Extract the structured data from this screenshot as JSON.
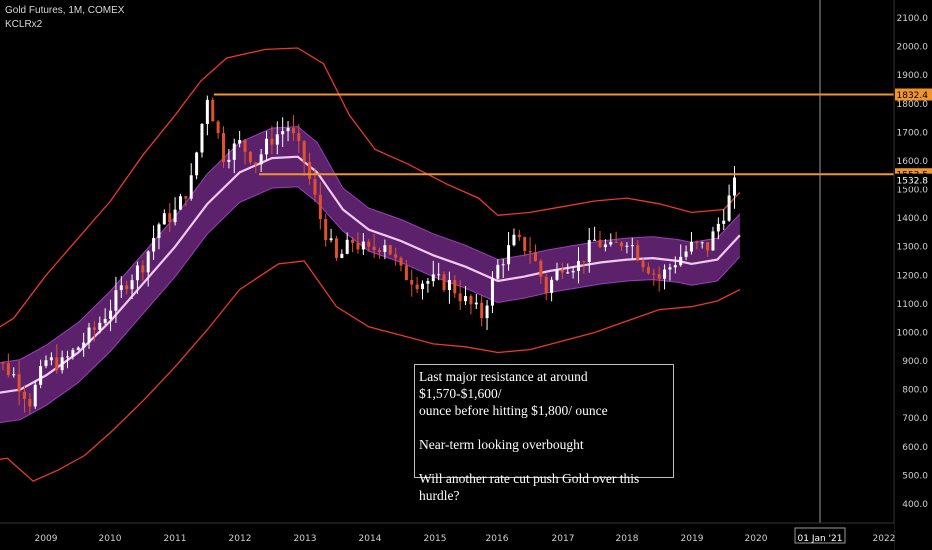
{
  "header": {
    "title": "Gold Futures, 1M, COMEX",
    "indicator": "KCLRx2"
  },
  "annotation": {
    "line1": "Last major resistance at around $1,570-$1,600/",
    "line2": "ounce before hitting $1,800/ ounce",
    "line3": "Near-term looking overbought",
    "line4": "Will another rate cut push Gold over this hurdle?"
  },
  "colors": {
    "background": "#000000",
    "up_candle": "#ffffff",
    "down_candle": "#e0522d",
    "channel_fill": "#7a2d8f",
    "midline": "#f3c8f0",
    "outer_band": "#e8392b",
    "resistance": "#f0942e",
    "price_tag": "#f0942e"
  },
  "chart_data": {
    "type": "candlestick",
    "title": "Gold Futures, 1M, COMEX",
    "y_axis": {
      "ticks": [
        "400.0",
        "500.0",
        "600.0",
        "700.0",
        "800.0",
        "900.0",
        "1000.0",
        "1100.0",
        "1200.0",
        "1300.0",
        "1400.0",
        "1500.0",
        "1600.0",
        "1700.0",
        "1800.0",
        "1900.0",
        "2000.0",
        "2100.0"
      ],
      "range": [
        360,
        2140
      ],
      "side": "right"
    },
    "x_axis": {
      "labels": [
        "2009",
        "2010",
        "2011",
        "2012",
        "2013",
        "2014",
        "2015",
        "2016",
        "2017",
        "2018",
        "2019",
        "2020",
        "2022"
      ],
      "cursor_label": "01 Jan '21"
    },
    "price_tags": [
      {
        "label": "1832.4",
        "value": 1832.4
      },
      {
        "label": "1553.5",
        "value": 1553.5
      },
      {
        "label": "1532.8",
        "value": 1532.8
      }
    ],
    "resistance_lines": [
      {
        "value": 1832.4,
        "from": "2011.6"
      },
      {
        "value": 1553.5,
        "from": "2012.3"
      }
    ],
    "candles_close": [
      [
        2008.0,
        880
      ],
      [
        2008.25,
        900
      ],
      [
        2008.5,
        850
      ],
      [
        2008.75,
        760
      ],
      [
        2009.0,
        900
      ],
      [
        2009.25,
        890
      ],
      [
        2009.5,
        950
      ],
      [
        2009.75,
        1010
      ],
      [
        2010.0,
        1090
      ],
      [
        2010.25,
        1180
      ],
      [
        2010.5,
        1240
      ],
      [
        2010.75,
        1380
      ],
      [
        2011.0,
        1420
      ],
      [
        2011.25,
        1530
      ],
      [
        2011.5,
        1830
      ],
      [
        2011.75,
        1620
      ],
      [
        2012.0,
        1660
      ],
      [
        2012.25,
        1600
      ],
      [
        2012.5,
        1680
      ],
      [
        2012.75,
        1720
      ],
      [
        2013.0,
        1600
      ],
      [
        2013.25,
        1400
      ],
      [
        2013.5,
        1250
      ],
      [
        2013.75,
        1320
      ],
      [
        2014.0,
        1280
      ],
      [
        2014.25,
        1320
      ],
      [
        2014.5,
        1210
      ],
      [
        2014.75,
        1180
      ],
      [
        2015.0,
        1180
      ],
      [
        2015.25,
        1170
      ],
      [
        2015.5,
        1110
      ],
      [
        2015.75,
        1060
      ],
      [
        2016.0,
        1230
      ],
      [
        2016.25,
        1320
      ],
      [
        2016.5,
        1290
      ],
      [
        2016.75,
        1150
      ],
      [
        2017.0,
        1240
      ],
      [
        2017.25,
        1240
      ],
      [
        2017.5,
        1320
      ],
      [
        2017.75,
        1290
      ],
      [
        2018.0,
        1330
      ],
      [
        2018.25,
        1250
      ],
      [
        2018.5,
        1190
      ],
      [
        2018.75,
        1250
      ],
      [
        2019.0,
        1300
      ],
      [
        2019.25,
        1300
      ],
      [
        2019.5,
        1420
      ],
      [
        2019.7,
        1532.8
      ]
    ]
  }
}
